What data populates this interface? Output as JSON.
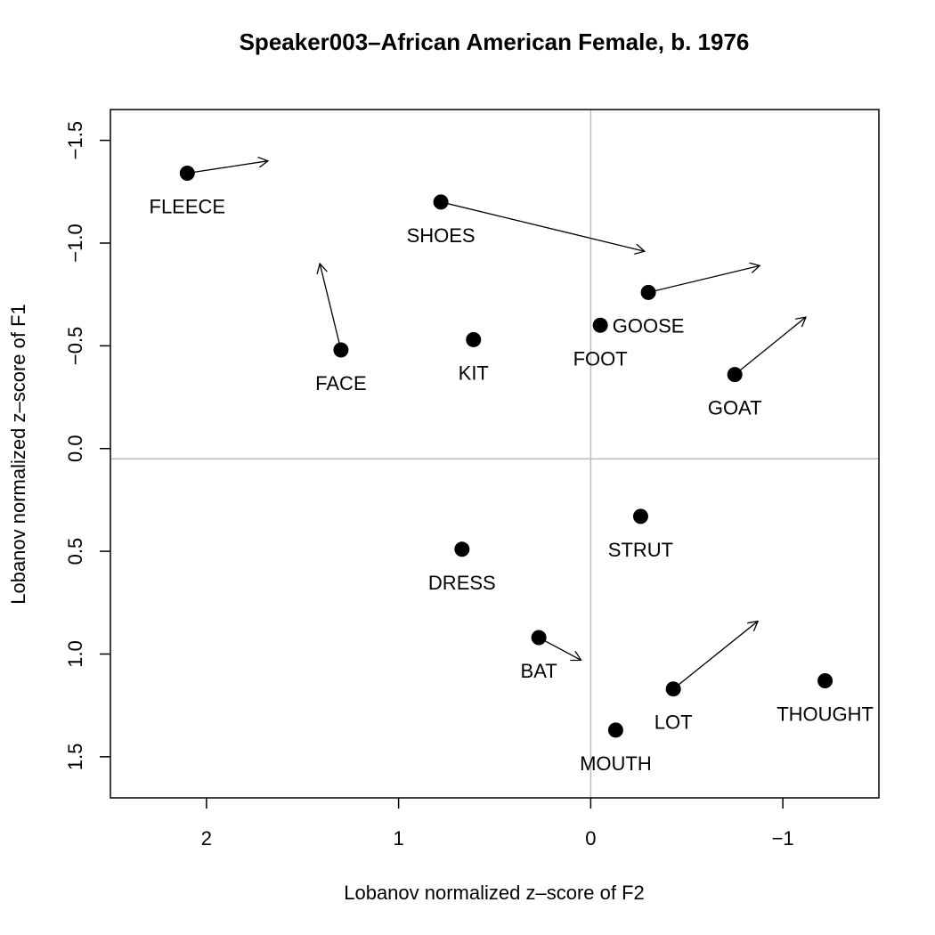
{
  "chart_data": {
    "type": "scatter",
    "title": "Speaker003–African American Female, b. 1976",
    "xlabel": "Lobanov normalized z–score of F2",
    "ylabel": "Lobanov normalized z–score of F1",
    "xlim": [
      2.5,
      -1.5
    ],
    "ylim": [
      -1.65,
      1.7
    ],
    "x_reversed": true,
    "y_reversed": true,
    "x_ticks": [
      {
        "value": 2,
        "label": "2"
      },
      {
        "value": 1,
        "label": "1"
      },
      {
        "value": 0,
        "label": "0"
      },
      {
        "value": -1,
        "label": "−1"
      }
    ],
    "y_ticks": [
      {
        "value": -1.5,
        "label": "−1.5"
      },
      {
        "value": -1.0,
        "label": "−1.0"
      },
      {
        "value": -0.5,
        "label": "−0.5"
      },
      {
        "value": 0.0,
        "label": "0.0"
      },
      {
        "value": 0.5,
        "label": "0.5"
      },
      {
        "value": 1.0,
        "label": "1.0"
      },
      {
        "value": 1.5,
        "label": "1.5"
      }
    ],
    "reference_lines": {
      "vertical_x": 0.0,
      "horizontal_y": 0.05
    },
    "grid": false,
    "points": [
      {
        "label": "FLEECE",
        "x": 2.1,
        "y": -1.34,
        "arrow_to": [
          1.68,
          -1.4
        ]
      },
      {
        "label": "SHOES",
        "x": 0.78,
        "y": -1.2,
        "arrow_to": [
          -0.28,
          -0.96
        ]
      },
      {
        "label": "FACE",
        "x": 1.3,
        "y": -0.48,
        "arrow_to": [
          1.41,
          -0.9
        ]
      },
      {
        "label": "KIT",
        "x": 0.61,
        "y": -0.53
      },
      {
        "label": "FOOT",
        "x": -0.05,
        "y": -0.6
      },
      {
        "label": "GOOSE",
        "x": -0.3,
        "y": -0.76,
        "arrow_to": [
          -0.88,
          -0.89
        ]
      },
      {
        "label": "GOAT",
        "x": -0.75,
        "y": -0.36,
        "arrow_to": [
          -1.12,
          -0.64
        ]
      },
      {
        "label": "STRUT",
        "x": -0.26,
        "y": 0.33
      },
      {
        "label": "DRESS",
        "x": 0.67,
        "y": 0.49
      },
      {
        "label": "BAT",
        "x": 0.27,
        "y": 0.92,
        "arrow_to": [
          0.05,
          1.03
        ]
      },
      {
        "label": "THOUGHT",
        "x": -1.22,
        "y": 1.13
      },
      {
        "label": "LOT",
        "x": -0.43,
        "y": 1.17,
        "arrow_to": [
          -0.87,
          0.84
        ]
      },
      {
        "label": "MOUTH",
        "x": -0.13,
        "y": 1.37
      }
    ]
  }
}
